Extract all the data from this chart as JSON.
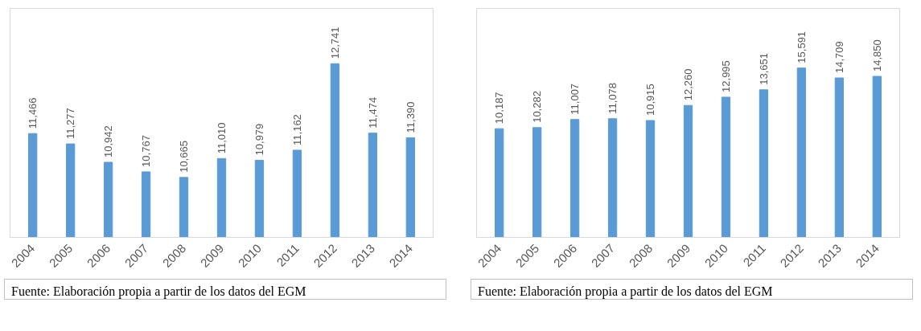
{
  "chart_data": [
    {
      "type": "bar",
      "categories": [
        "2004",
        "2005",
        "2006",
        "2007",
        "2008",
        "2009",
        "2010",
        "2011",
        "2012",
        "2013",
        "2014"
      ],
      "values": [
        11466,
        11277,
        10942,
        10767,
        10665,
        11010,
        10979,
        11162,
        12741,
        11474,
        11390
      ],
      "value_labels": [
        "11,466",
        "11,277",
        "10,942",
        "10,767",
        "10,665",
        "11,010",
        "10,979",
        "11,162",
        "12,741",
        "11,474",
        "11,390"
      ],
      "color": "#5b9bd5",
      "ylim": [
        9570,
        13750
      ],
      "tick_labels": "x",
      "grid": false,
      "annotations": [
        "Fuente: Elaboración propia a partir de los datos del EGM"
      ]
    },
    {
      "type": "bar",
      "categories": [
        "2004",
        "2005",
        "2006",
        "2007",
        "2008",
        "2009",
        "2010",
        "2011",
        "2012",
        "2013",
        "2014"
      ],
      "values": [
        10187,
        10282,
        11007,
        11078,
        10915,
        12260,
        12995,
        13651,
        15591,
        14709,
        14850
      ],
      "value_labels": [
        "10,187",
        "10,282",
        "11,007",
        "11,078",
        "10,915",
        "12,260",
        "12,995",
        "13,651",
        "15,591",
        "14,709",
        "14,850"
      ],
      "color": "#5b9bd5",
      "ylim": [
        500,
        20900
      ],
      "tick_labels": "x",
      "grid": false,
      "annotations": [
        "Fuente: Elaboración propia a partir de los datos del EGM"
      ]
    }
  ]
}
